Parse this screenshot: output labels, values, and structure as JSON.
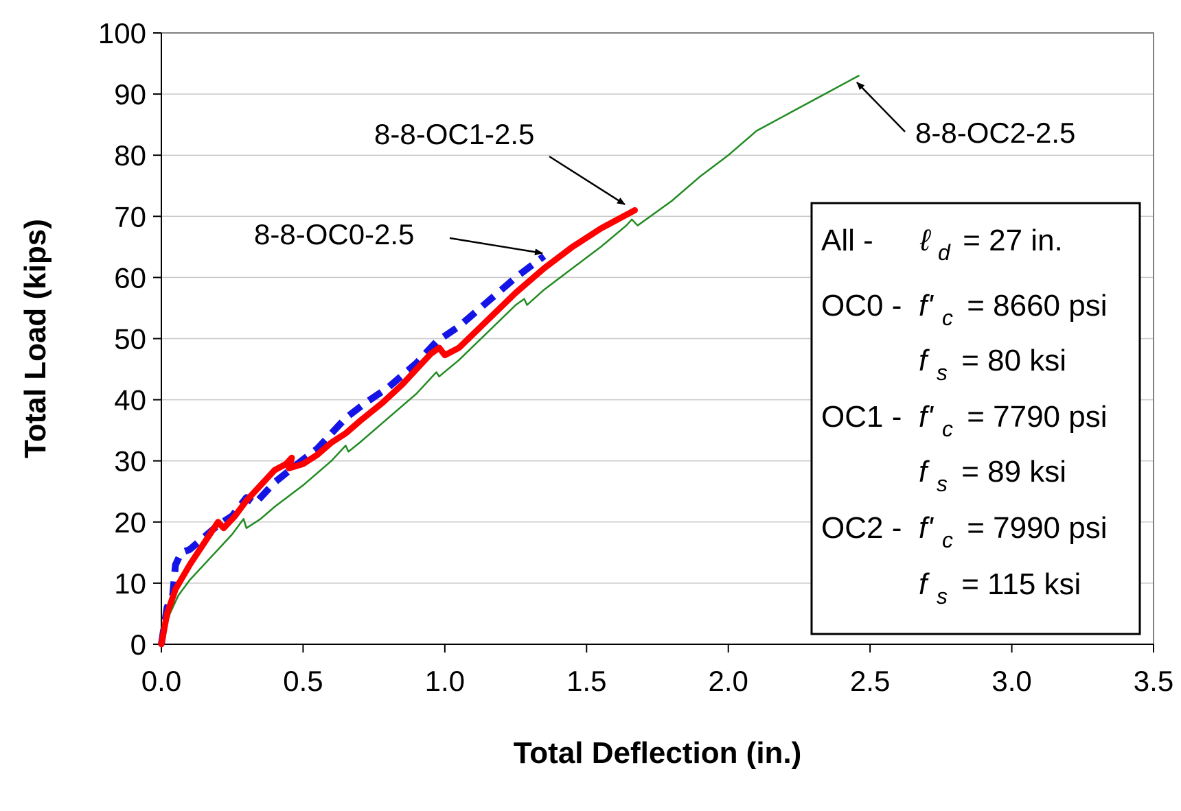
{
  "chart_data": {
    "type": "line",
    "xlabel": "Total Deflection (in.)",
    "ylabel": "Total Load (kips)",
    "xlim": [
      0,
      3.5
    ],
    "ylim": [
      0,
      100
    ],
    "x_ticks": [
      "0.0",
      "0.5",
      "1.0",
      "1.5",
      "2.0",
      "2.5",
      "3.0",
      "3.5"
    ],
    "y_ticks": [
      "0",
      "10",
      "20",
      "30",
      "40",
      "50",
      "60",
      "70",
      "80",
      "90",
      "100"
    ],
    "grid": "horizontal",
    "series": [
      {
        "name": "8-8-OC0-2.5",
        "color": "#1414e6",
        "style": "dashed",
        "points": [
          [
            0,
            0
          ],
          [
            0.02,
            6
          ],
          [
            0.04,
            8
          ],
          [
            0.05,
            13
          ],
          [
            0.07,
            15
          ],
          [
            0.1,
            15.5
          ],
          [
            0.15,
            17.5
          ],
          [
            0.2,
            19.5
          ],
          [
            0.25,
            21
          ],
          [
            0.3,
            24
          ],
          [
            0.33,
            23
          ],
          [
            0.4,
            26.5
          ],
          [
            0.48,
            29.5
          ],
          [
            0.55,
            32
          ],
          [
            0.65,
            37
          ],
          [
            0.72,
            39.5
          ],
          [
            0.8,
            42
          ],
          [
            0.9,
            46
          ],
          [
            0.97,
            49.5
          ],
          [
            1.05,
            52
          ],
          [
            1.15,
            56
          ],
          [
            1.25,
            60
          ],
          [
            1.35,
            63.5
          ]
        ]
      },
      {
        "name": "8-8-OC1-2.5",
        "color": "#ff0000",
        "style": "solid",
        "points": [
          [
            0,
            0
          ],
          [
            0.02,
            5
          ],
          [
            0.05,
            9
          ],
          [
            0.1,
            13
          ],
          [
            0.15,
            16.5
          ],
          [
            0.2,
            20
          ],
          [
            0.22,
            19
          ],
          [
            0.26,
            21
          ],
          [
            0.3,
            23.5
          ],
          [
            0.35,
            26
          ],
          [
            0.4,
            28.5
          ],
          [
            0.44,
            29.5
          ],
          [
            0.46,
            30.5
          ],
          [
            0.45,
            28.8
          ],
          [
            0.5,
            29.5
          ],
          [
            0.55,
            31
          ],
          [
            0.6,
            33
          ],
          [
            0.65,
            34.5
          ],
          [
            0.7,
            36.5
          ],
          [
            0.78,
            39.5
          ],
          [
            0.85,
            42.5
          ],
          [
            0.9,
            45
          ],
          [
            0.95,
            47.5
          ],
          [
            0.98,
            48.5
          ],
          [
            1.0,
            47.3
          ],
          [
            1.05,
            48.5
          ],
          [
            1.15,
            53
          ],
          [
            1.25,
            57.5
          ],
          [
            1.35,
            61.5
          ],
          [
            1.45,
            65
          ],
          [
            1.55,
            68
          ],
          [
            1.67,
            71
          ]
        ]
      },
      {
        "name": "8-8-OC2-2.5",
        "color": "#228b22",
        "style": "solid",
        "points": [
          [
            0,
            0
          ],
          [
            0.03,
            5
          ],
          [
            0.06,
            8
          ],
          [
            0.1,
            10.5
          ],
          [
            0.15,
            13
          ],
          [
            0.2,
            15.5
          ],
          [
            0.25,
            18
          ],
          [
            0.29,
            20.5
          ],
          [
            0.3,
            19
          ],
          [
            0.35,
            20.5
          ],
          [
            0.4,
            22.5
          ],
          [
            0.5,
            26
          ],
          [
            0.6,
            30
          ],
          [
            0.65,
            32.5
          ],
          [
            0.66,
            31.5
          ],
          [
            0.7,
            33
          ],
          [
            0.8,
            37
          ],
          [
            0.9,
            41
          ],
          [
            0.97,
            44.5
          ],
          [
            0.98,
            43.8
          ],
          [
            1.05,
            46.5
          ],
          [
            1.15,
            51
          ],
          [
            1.25,
            55.5
          ],
          [
            1.28,
            56.5
          ],
          [
            1.29,
            55.5
          ],
          [
            1.35,
            58
          ],
          [
            1.45,
            61.5
          ],
          [
            1.55,
            65
          ],
          [
            1.64,
            68.5
          ],
          [
            1.66,
            69.5
          ],
          [
            1.68,
            68.5
          ],
          [
            1.8,
            72.5
          ],
          [
            1.9,
            76.5
          ],
          [
            2.0,
            80
          ],
          [
            2.1,
            84
          ],
          [
            2.2,
            86.5
          ],
          [
            2.3,
            89
          ],
          [
            2.4,
            91.5
          ],
          [
            2.46,
            93
          ]
        ]
      }
    ],
    "annotations": [
      {
        "text": "8-8-OC0-2.5",
        "points_to": [
          1.35,
          63.5
        ]
      },
      {
        "text": "8-8-OC1-2.5",
        "points_to": [
          1.66,
          71
        ]
      },
      {
        "text": "8-8-OC2-2.5",
        "points_to": [
          2.46,
          93
        ]
      }
    ],
    "legend_box": {
      "placement": "right",
      "lines": [
        {
          "prefix": "All - ",
          "symbol": "ℓ",
          "sub": "d",
          "value": " = 27 in."
        },
        {
          "prefix": "OC0 - ",
          "symbol": "f'",
          "sub": "c",
          "value": " = 8660 psi"
        },
        {
          "prefix": "",
          "symbol": "f",
          "sub": "s",
          "value": " = 80 ksi"
        },
        {
          "prefix": "OC1 - ",
          "symbol": "f'",
          "sub": "c",
          "value": " = 7790 psi"
        },
        {
          "prefix": "",
          "symbol": "f",
          "sub": "s",
          "value": " = 89 ksi"
        },
        {
          "prefix": "OC2 - ",
          "symbol": "f'",
          "sub": "c",
          "value": " = 7990 psi"
        },
        {
          "prefix": "",
          "symbol": "f",
          "sub": "s",
          "value": " = 115 ksi"
        }
      ]
    }
  }
}
